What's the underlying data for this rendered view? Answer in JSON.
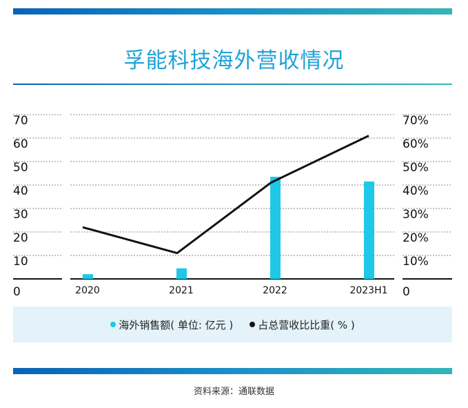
{
  "title": "孚能科技海外营收情况",
  "source": "资料来源：通联数据",
  "colors": {
    "bar": "#1ec8e6",
    "line": "#111111",
    "accent": "#1da3d8"
  },
  "legend": {
    "bar_label": "海外销售额( 单位: 亿元 )",
    "line_label": "占总营收比比重( % )"
  },
  "chart_data": {
    "type": "bar",
    "categories": [
      "2020",
      "2021",
      "2022",
      "2023H1"
    ],
    "series": [
      {
        "name": "海外销售额( 单位: 亿元 )",
        "type": "bar",
        "axis": "left",
        "values": [
          2,
          4.5,
          43.5,
          41.5
        ]
      },
      {
        "name": "占总营收比比重( % )",
        "type": "line",
        "axis": "right",
        "values": [
          22,
          11,
          41,
          61
        ]
      }
    ],
    "left_ticks": [
      "0",
      "10",
      "20",
      "30",
      "40",
      "50",
      "60",
      "70"
    ],
    "right_ticks": [
      "0",
      "10%",
      "20%",
      "30%",
      "40%",
      "50%",
      "60%",
      "70%"
    ],
    "ylim_left": [
      0,
      70
    ],
    "ylim_right": [
      0,
      70
    ],
    "grid": true
  }
}
